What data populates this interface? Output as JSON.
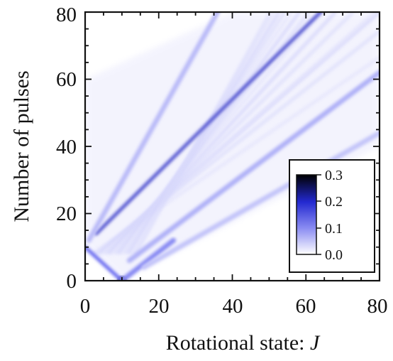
{
  "chart_data": {
    "type": "heatmap",
    "xlabel": "Rotational state: ",
    "xlabel_var": "J",
    "ylabel": "Number of pulses",
    "xlim": [
      0,
      80
    ],
    "ylim": [
      0,
      80
    ],
    "x_ticks": [
      "0",
      "20",
      "40",
      "60",
      "80"
    ],
    "y_ticks": [
      "0",
      "20",
      "40",
      "60",
      "80"
    ],
    "colorbar": {
      "range": [
        0.0,
        0.3
      ],
      "ticks": [
        "0.0",
        "0.1",
        "0.2",
        "0.3"
      ],
      "colors": [
        "#ffffff",
        "#6a6cf0",
        "#1a22c8",
        "#000000"
      ]
    },
    "features": [
      {
        "name": "initial-state",
        "J": 10,
        "N": 0,
        "intensity": 0.3
      },
      {
        "name": "descending-branch",
        "from": [
          10,
          0
        ],
        "to": [
          0,
          10
        ],
        "intensity": 0.15
      },
      {
        "name": "ascending-branch",
        "from": [
          10,
          0
        ],
        "to": [
          24,
          12
        ],
        "intensity": 0.12
      },
      {
        "name": "main-ridge",
        "from": [
          3,
          14
        ],
        "to": [
          64,
          80
        ],
        "intensity": 0.18
      },
      {
        "name": "ridge-steep",
        "from": [
          1,
          12
        ],
        "to": [
          36,
          80
        ],
        "intensity": 0.07
      },
      {
        "name": "ridge-low-1",
        "from": [
          12,
          6
        ],
        "to": [
          80,
          62
        ],
        "intensity": 0.08
      },
      {
        "name": "ridge-low-2",
        "from": [
          16,
          4
        ],
        "to": [
          80,
          44
        ],
        "intensity": 0.06
      }
    ]
  }
}
